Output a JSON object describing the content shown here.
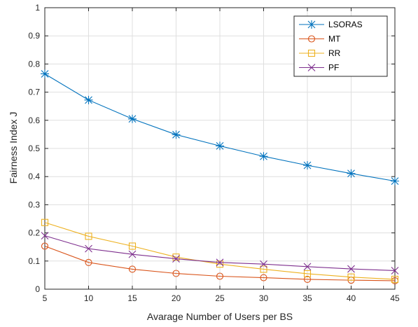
{
  "chart_data": {
    "type": "line",
    "title": "",
    "xlabel": "Avarage Number of Users per BS",
    "ylabel": "Fairness Index J",
    "x": [
      5,
      10,
      15,
      20,
      25,
      30,
      35,
      40,
      45
    ],
    "xlim": [
      5,
      45
    ],
    "ylim": [
      0,
      1
    ],
    "xticks": [
      "5",
      "10",
      "15",
      "20",
      "25",
      "30",
      "35",
      "40",
      "45"
    ],
    "yticks": [
      "0",
      "0.1",
      "0.2",
      "0.3",
      "0.4",
      "0.5",
      "0.6",
      "0.7",
      "0.8",
      "0.9",
      "1"
    ],
    "grid": true,
    "legend_position": "top-right",
    "series": [
      {
        "name": "LSORAS",
        "color": "#0072BD",
        "marker": "asterisk",
        "values": [
          0.765,
          0.672,
          0.605,
          0.549,
          0.509,
          0.472,
          0.44,
          0.411,
          0.384
        ]
      },
      {
        "name": "MT",
        "color": "#D95319",
        "marker": "circle",
        "values": [
          0.153,
          0.095,
          0.071,
          0.056,
          0.046,
          0.041,
          0.035,
          0.032,
          0.03
        ]
      },
      {
        "name": "RR",
        "color": "#EDB120",
        "marker": "square",
        "values": [
          0.237,
          0.188,
          0.153,
          0.114,
          0.089,
          0.071,
          0.055,
          0.043,
          0.035
        ]
      },
      {
        "name": "PF",
        "color": "#7E2F8E",
        "marker": "x",
        "values": [
          0.19,
          0.144,
          0.124,
          0.108,
          0.095,
          0.089,
          0.08,
          0.072,
          0.066
        ]
      }
    ]
  }
}
